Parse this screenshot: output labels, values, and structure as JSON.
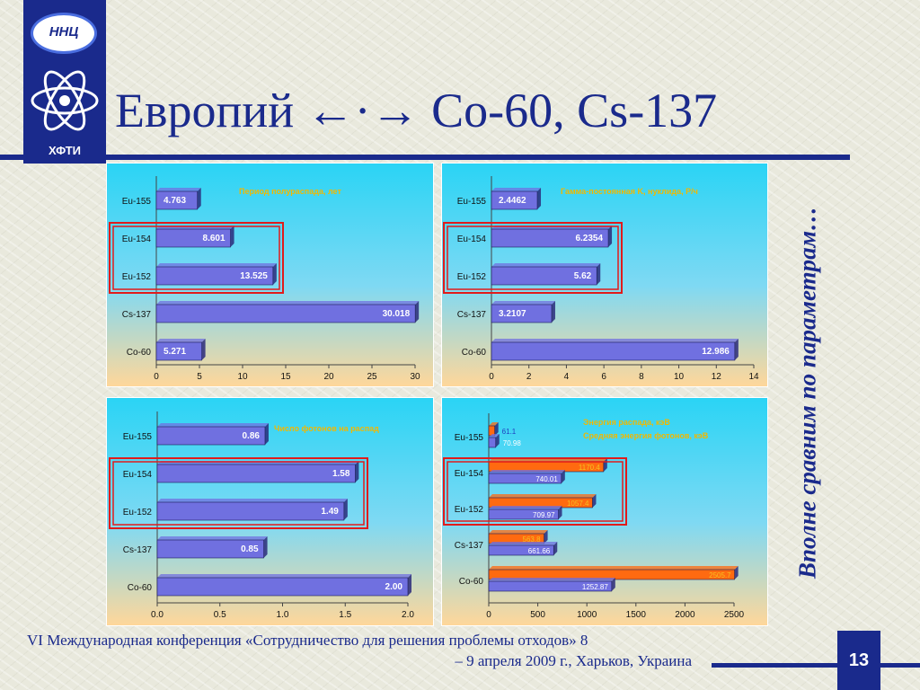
{
  "title": "Европий ←·→ Co-60, Cs-137",
  "side_caption": "Вполне сравним по параметрам…",
  "logo": {
    "top_text": "ННЦ",
    "bottom_text": "ХФТИ"
  },
  "footer": {
    "line1": "VI Международная конференция «Сотрудничество для решения проблемы отходов» 8",
    "line2": "– 9 апреля 2009 г., Харьков, Украина"
  },
  "page_number": "13",
  "colors": {
    "accent": "#1a2a8c",
    "bar": "#7070e0",
    "bar_orange": "#ff6a10",
    "highlight": "#e11b1b",
    "label_yellow": "#f0b800"
  },
  "chart_data": [
    {
      "type": "bar",
      "title": "Период полураспада, лет",
      "categories": [
        "Eu-155",
        "Eu-154",
        "Eu-152",
        "Cs-137",
        "Co-60"
      ],
      "values": [
        4.763,
        8.601,
        13.525,
        30.018,
        5.271
      ],
      "value_labels": [
        "4.763",
        "8.601",
        "13.525",
        "30.018",
        "5.271"
      ],
      "xlim": [
        0,
        30
      ],
      "ticks": [
        "0",
        "5",
        "10",
        "15",
        "20",
        "25",
        "30"
      ],
      "highlighted": [
        "Eu-154",
        "Eu-152"
      ]
    },
    {
      "type": "bar",
      "title": "Гамма-постоянная K, нуклида, Р/ч",
      "categories": [
        "Eu-155",
        "Eu-154",
        "Eu-152",
        "Cs-137",
        "Co-60"
      ],
      "values": [
        2.4462,
        6.2354,
        5.62,
        3.2107,
        12.986
      ],
      "value_labels": [
        "2.4462",
        "6.2354",
        "5.62",
        "3.2107",
        "12.986"
      ],
      "xlim": [
        0,
        14
      ],
      "ticks": [
        "0",
        "2",
        "4",
        "6",
        "8",
        "10",
        "12",
        "14"
      ],
      "highlighted": [
        "Eu-154",
        "Eu-152"
      ]
    },
    {
      "type": "bar",
      "title": "Число фотонов на распад",
      "categories": [
        "Eu-155",
        "Eu-154",
        "Eu-152",
        "Cs-137",
        "Co-60"
      ],
      "values": [
        0.86,
        1.58,
        1.49,
        0.85,
        2.0
      ],
      "value_labels": [
        "0.86",
        "1.58",
        "1.49",
        "0.85",
        "2.00"
      ],
      "xlim": [
        0,
        2
      ],
      "ticks": [
        "0.0",
        "0.5",
        "1.0",
        "1.5",
        "2.0"
      ],
      "highlighted": [
        "Eu-154",
        "Eu-152"
      ]
    },
    {
      "type": "bar",
      "categories": [
        "Eu-155",
        "Eu-154",
        "Eu-152",
        "Cs-137",
        "Co-60"
      ],
      "series": [
        {
          "name": "Энергия распада, кэВ",
          "values": [
            61.1,
            1170.4,
            1057.4,
            563.8,
            2505.7
          ],
          "value_labels": [
            "61.1",
            "1170.4",
            "1057.4",
            "563.8",
            "2505.7"
          ]
        },
        {
          "name": "Средняя энергия фотонов, кэВ",
          "values": [
            70.98,
            740.01,
            709.97,
            661.66,
            1252.87
          ],
          "value_labels": [
            "70.98",
            "740.01",
            "709.97",
            "661.66",
            "1252.87"
          ]
        }
      ],
      "xlim": [
        0,
        2500
      ],
      "ticks": [
        "0",
        "500",
        "1000",
        "1500",
        "2000",
        "2500"
      ],
      "legend": "top-right",
      "highlighted": [
        "Eu-154",
        "Eu-152"
      ]
    }
  ]
}
